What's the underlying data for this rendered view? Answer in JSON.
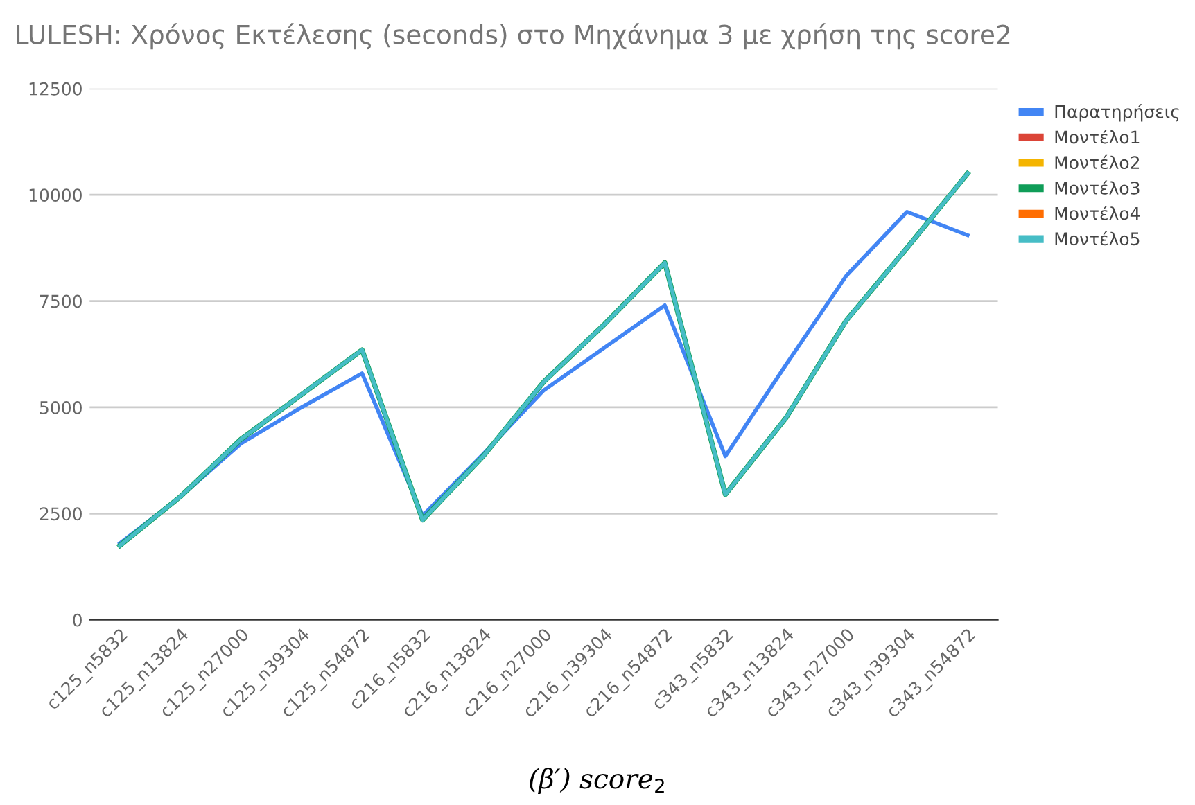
{
  "chart_data": {
    "type": "line",
    "title": "LULESH: Χρόνος Εκτέλεσης (seconds) στο Μηχάνημα 3 με χρήση της score2",
    "categories": [
      "c125_n5832",
      "c125_n13824",
      "c125_n27000",
      "c125_n39304",
      "c125_n54872",
      "c216_n5832",
      "c216_n13824",
      "c216_n27000",
      "c216_n39304",
      "c216_n54872",
      "c343_n5832",
      "c343_n13824",
      "c343_n27000",
      "c343_n39304",
      "c343_n54872"
    ],
    "series": [
      {
        "name": "Παρατηρήσεις",
        "color": "#4285f4",
        "values": [
          1800,
          2900,
          4150,
          5000,
          5800,
          2450,
          3900,
          5400,
          6400,
          7400,
          3850,
          6000,
          8100,
          9600,
          9050
        ]
      },
      {
        "name": "Μοντέλο1",
        "color": "#db4437",
        "values": [
          null,
          null,
          null,
          null,
          null,
          null,
          null,
          null,
          null,
          null,
          null,
          null,
          null,
          null,
          null
        ]
      },
      {
        "name": "Μοντέλο2",
        "color": "#f4b400",
        "values": [
          null,
          null,
          null,
          null,
          null,
          null,
          null,
          null,
          null,
          null,
          null,
          null,
          null,
          null,
          null
        ]
      },
      {
        "name": "Μοντέλο3",
        "color": "#0f9d58",
        "values": [
          1750,
          2900,
          4250,
          5300,
          6350,
          2350,
          3850,
          5600,
          6950,
          8400,
          2950,
          4750,
          7050,
          8750,
          10500
        ]
      },
      {
        "name": "Μοντέλο4",
        "color": "#ff6d01",
        "values": [
          null,
          null,
          null,
          null,
          null,
          null,
          null,
          null,
          null,
          null,
          null,
          null,
          null,
          null,
          null
        ]
      },
      {
        "name": "Μοντέλο5",
        "color": "#46bdc6",
        "values": [
          1750,
          2900,
          4250,
          5300,
          6350,
          2350,
          3850,
          5600,
          6950,
          8400,
          2950,
          4750,
          7050,
          8750,
          10500
        ]
      }
    ],
    "ylim": [
      0,
      12500
    ],
    "yticks": [
      0,
      2500,
      5000,
      7500,
      10000,
      12500
    ],
    "grid": "y",
    "legend": "right",
    "marker": "none",
    "line_style": "solid",
    "annotations": [
      "(β′) score$_{2}$"
    ]
  }
}
